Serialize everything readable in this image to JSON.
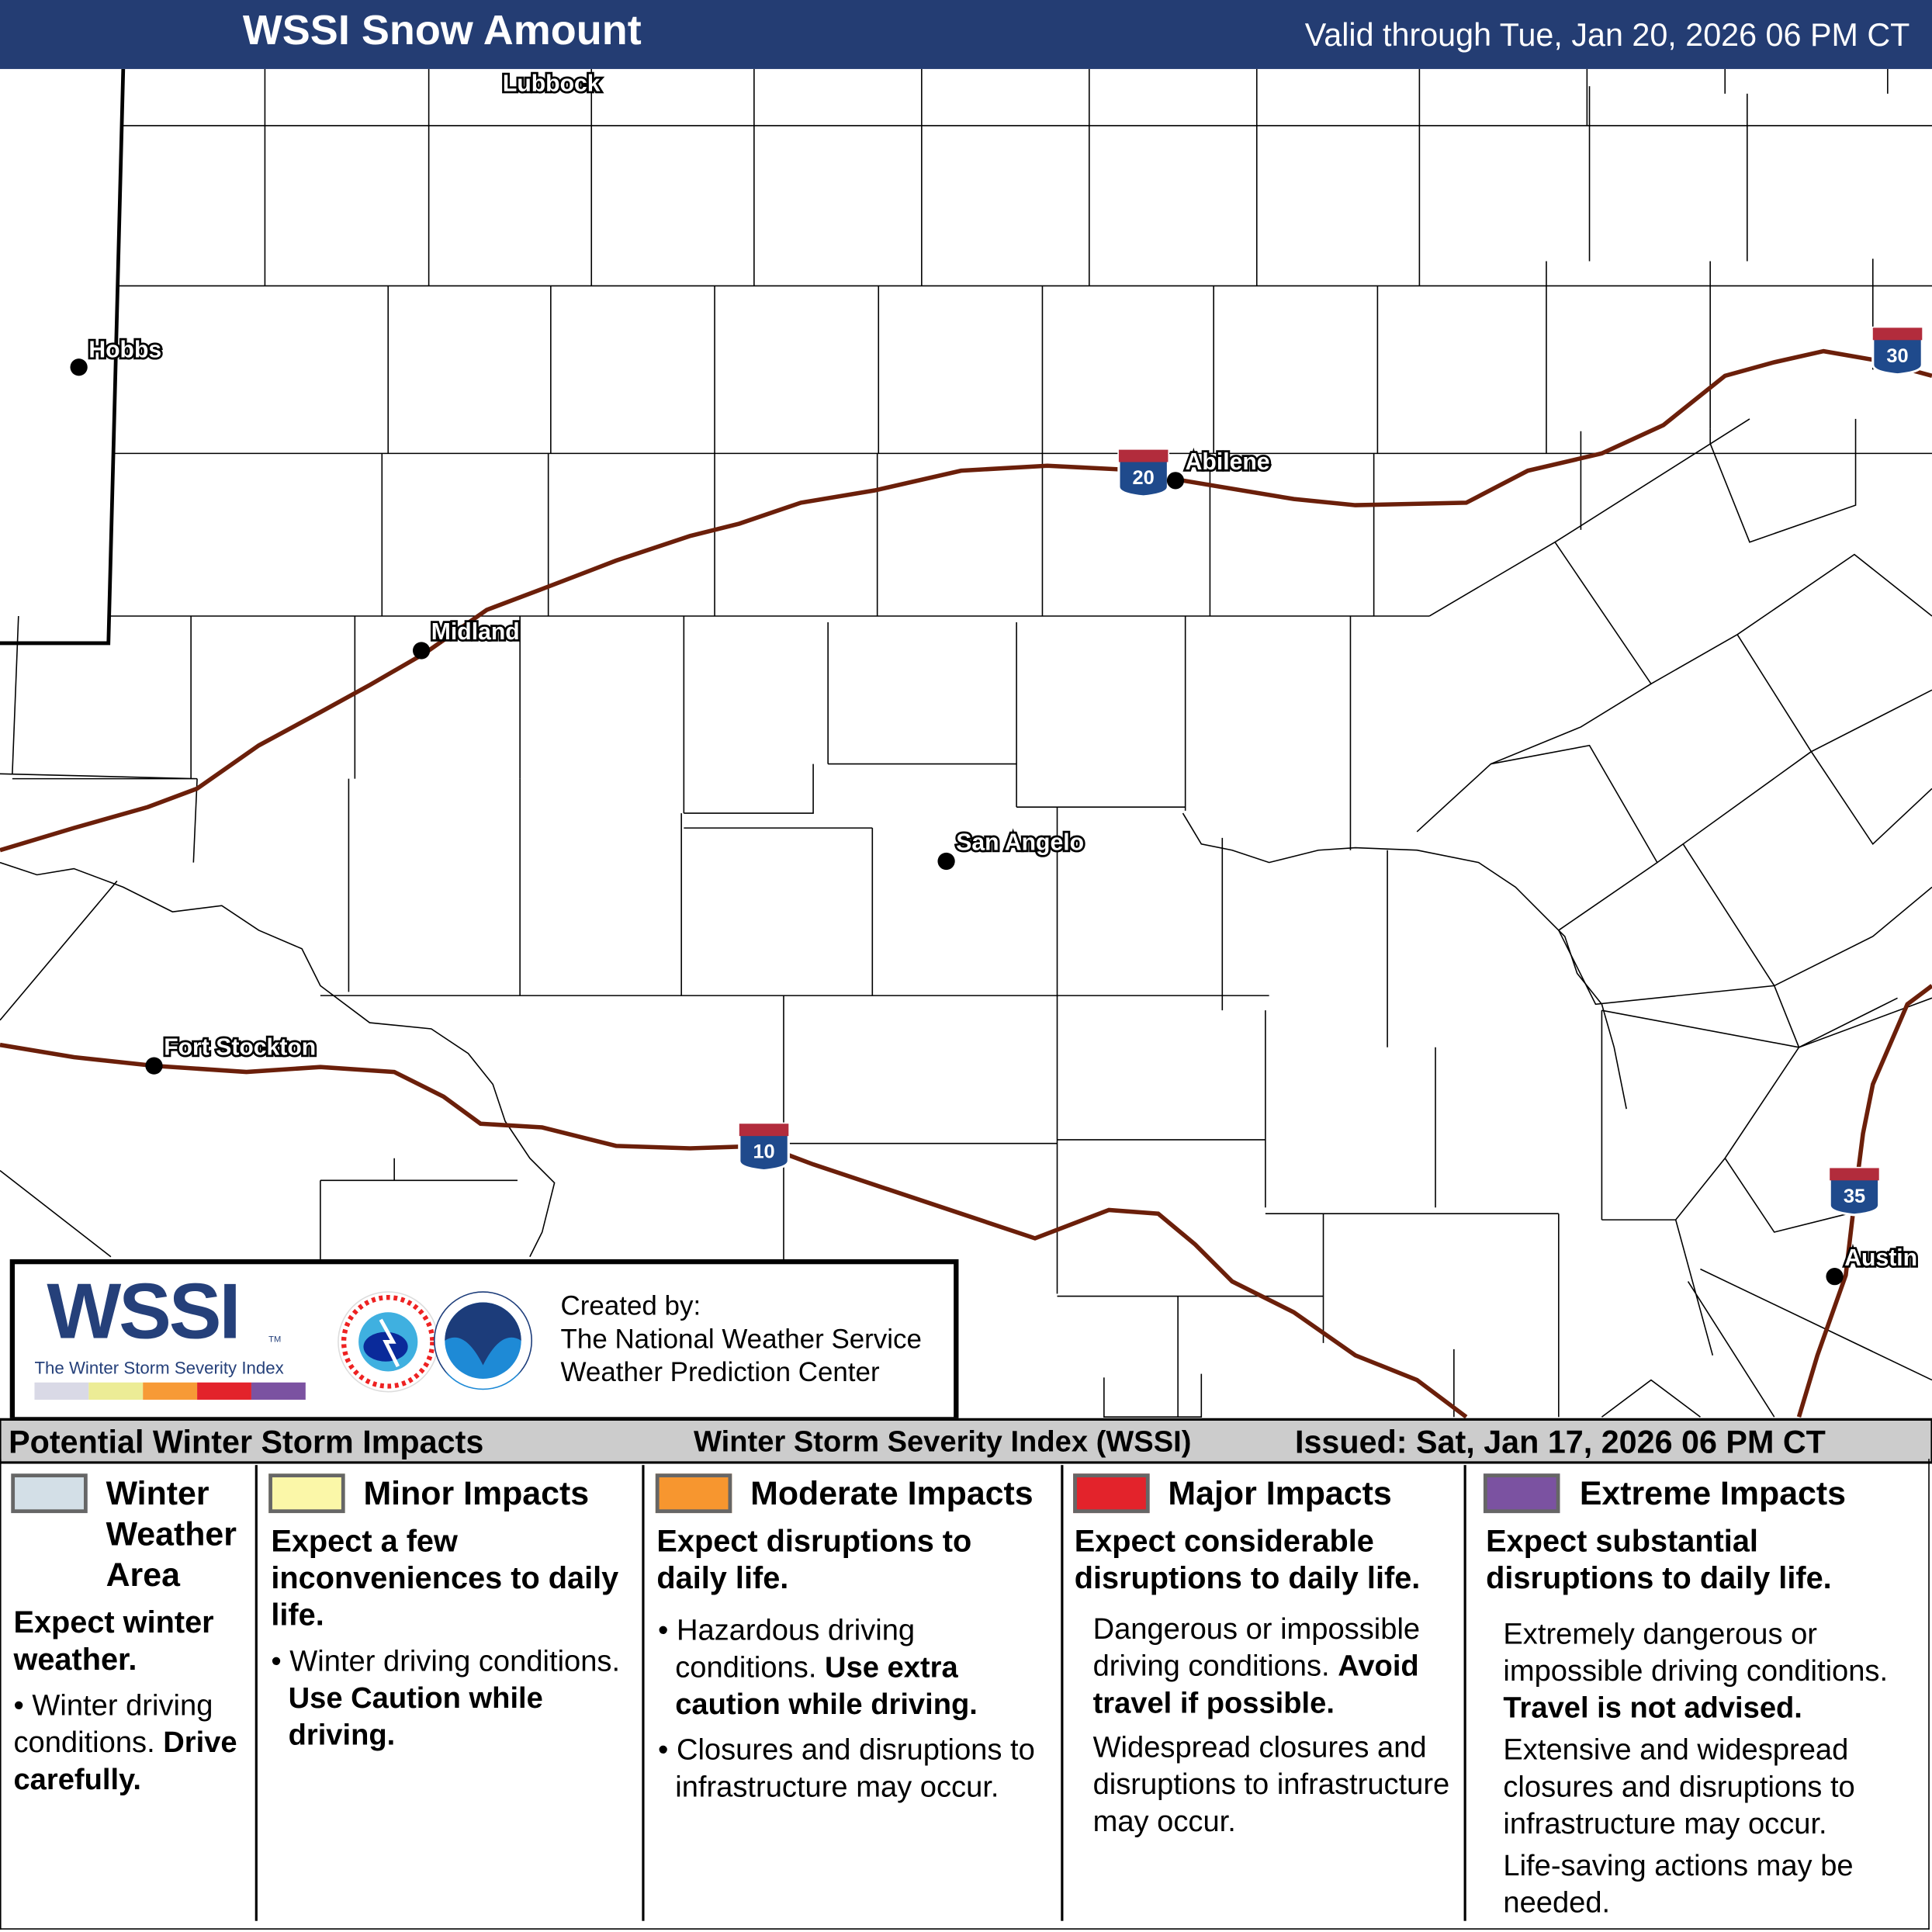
{
  "header": {
    "title": "WSSI Snow Amount",
    "valid": "Valid through Tue, Jan 20, 2026 06 PM CT",
    "bg": "#243d73"
  },
  "map": {
    "cities": [
      {
        "name": "Lubbock"
      },
      {
        "name": "Hobbs"
      },
      {
        "name": "Abilene"
      },
      {
        "name": "Midland"
      },
      {
        "name": "San Angelo"
      },
      {
        "name": "Fort Stockton"
      },
      {
        "name": "Austin"
      }
    ],
    "shields": [
      "20",
      "30",
      "10",
      "35"
    ],
    "road_color": "#6b1f0a"
  },
  "logo": {
    "wssi": "WSSI",
    "tm": "TM",
    "subtitle": "The Winter Storm Severity Index",
    "bar_colors": [
      "#d9d9e6",
      "#ecec96",
      "#f79a36",
      "#e3232b",
      "#7b52a1"
    ],
    "created_by": "Created by:",
    "org1": "The National Weather Service",
    "org2": "Weather Prediction Center"
  },
  "band": {
    "left": "Potential Winter Storm Impacts",
    "center": "Winter Storm Severity Index (WSSI)",
    "right": "Issued: Sat, Jan 17, 2026 06 PM CT"
  },
  "legend": [
    {
      "title": "Winter Weather Area",
      "color": "#d3dfe7",
      "lead": "Expect winter weather.",
      "b1": "Winter driving conditions.",
      "b1_bold": "Drive carefully."
    },
    {
      "title": "Minor Impacts",
      "color": "#fbf7a8",
      "lead": "Expect a few inconveniences to daily life.",
      "b1": "Winter driving conditions.",
      "b1_bold": "Use Caution while driving."
    },
    {
      "title": "Moderate Impacts",
      "color": "#f7962f",
      "lead": "Expect disruptions to daily life.",
      "b1": "Hazardous driving conditions.",
      "b1_bold": "Use extra caution while driving.",
      "b2": "Closures and disruptions to infrastructure may occur."
    },
    {
      "title": "Major Impacts",
      "color": "#e3232b",
      "lead": "Expect considerable disruptions to daily life.",
      "p1": "Dangerous or impossible driving conditions.",
      "p1_bold": "Avoid travel if possible.",
      "p2": "Widespread closures and disruptions to infrastructure may occur."
    },
    {
      "title": "Extreme Impacts",
      "color": "#7b52a1",
      "lead": "Expect substantial disruptions to daily life.",
      "p1": "Extremely dangerous or impossible driving conditions.",
      "p1_bold": "Travel is not advised.",
      "p2": "Extensive and widespread closures and disruptions to infrastructure may occur.",
      "p3": "Life-saving actions may be needed."
    }
  ]
}
